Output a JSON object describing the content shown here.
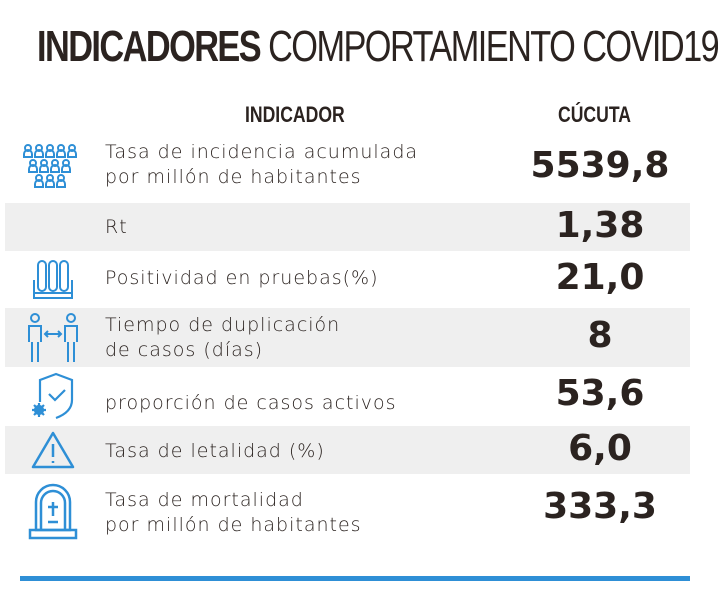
{
  "title": {
    "bold": "INDICADORES",
    "rest": "COMPORTAMIENTO COVID19"
  },
  "headers": {
    "indicator": "INDICADOR",
    "city": "CÚCUTA"
  },
  "rows": [
    {
      "icon": "people-group-icon",
      "label1": "Tasa de incidencia acumulada",
      "label2": "por millón de habitantes",
      "value": "5539,8"
    },
    {
      "icon": "",
      "label1": "Rt",
      "label2": "",
      "value": "1,38"
    },
    {
      "icon": "test-tubes-icon",
      "label1": "Positividad en pruebas(%)",
      "label2": "",
      "value": "21,0"
    },
    {
      "icon": "people-distance-icon",
      "label1": "Tiempo de duplicación",
      "label2": "de casos (días)",
      "value": "8"
    },
    {
      "icon": "shield-check-virus-icon",
      "label1": "proporción de casos activos",
      "label2": "",
      "value": "53,6"
    },
    {
      "icon": "warning-icon",
      "label1": "Tasa de letalidad (%)",
      "label2": "",
      "value": "6,0"
    },
    {
      "icon": "tombstone-icon",
      "label1": "Tasa de mortalidad",
      "label2": "por millón de habitantes",
      "value": "333,3"
    }
  ],
  "colors": {
    "accent": "#2e8fd6",
    "text": "#2b2320",
    "stripe": "#efefef"
  }
}
